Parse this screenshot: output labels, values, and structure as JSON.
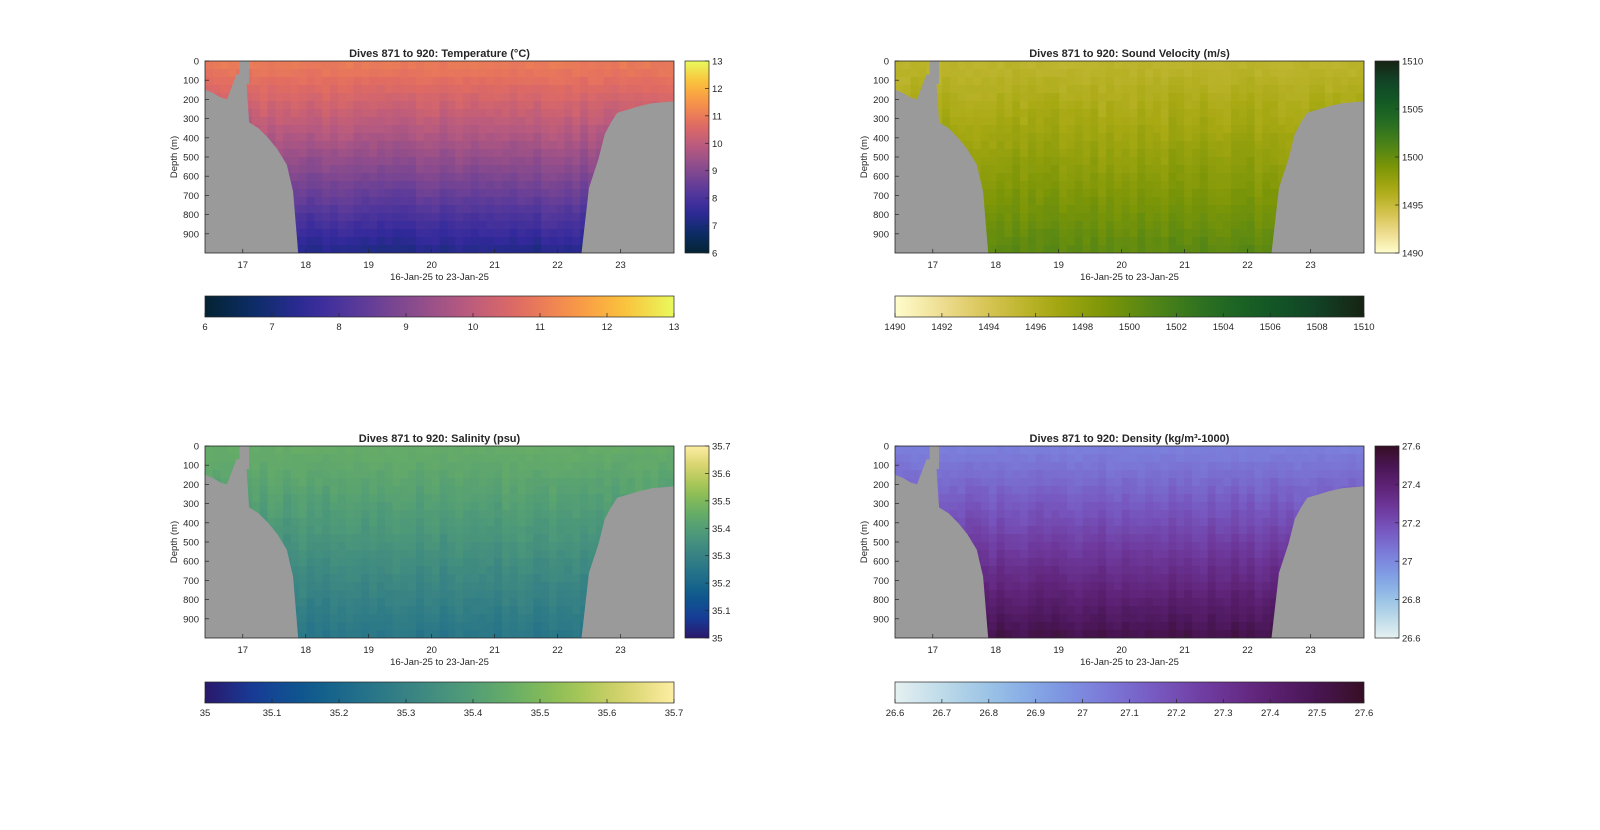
{
  "figure": {
    "background": "#ffffff",
    "land_color": "#9a9a9a"
  },
  "chart_data": [
    {
      "type": "heatmap",
      "id": "temperature",
      "title": "Dives 871 to 920: Temperature (°C)",
      "ylabel": "Depth (m)",
      "xlabel": "16-Jan-25 to 23-Jan-25",
      "xlim": [
        16.4,
        23.85
      ],
      "ylim": [
        0,
        1000
      ],
      "y_reversed": true,
      "xticks": [
        "17",
        "18",
        "19",
        "20",
        "21",
        "22",
        "23"
      ],
      "yticks": [
        "0",
        "100",
        "200",
        "300",
        "400",
        "500",
        "600",
        "700",
        "800",
        "900"
      ],
      "colormap": "thermal",
      "clim": [
        6,
        13
      ],
      "colorbar_right_ticks": [
        "13",
        "12",
        "11",
        "10",
        "9",
        "8",
        "7",
        "6"
      ],
      "colorbar_bottom_ticks": [
        "6",
        "7",
        "8",
        "9",
        "10",
        "11",
        "12",
        "13"
      ],
      "surface_value": 11.0,
      "deep_value": 7.2,
      "land_left": [
        [
          16.4,
          150
        ],
        [
          16.52,
          165
        ],
        [
          16.65,
          190
        ],
        [
          16.75,
          200
        ],
        [
          16.9,
          70
        ],
        [
          17.05,
          70
        ],
        [
          17.1,
          320
        ],
        [
          17.25,
          350
        ],
        [
          17.4,
          400
        ],
        [
          17.55,
          460
        ],
        [
          17.7,
          540
        ],
        [
          17.8,
          680
        ],
        [
          17.88,
          1000
        ]
      ],
      "land_right": [
        [
          22.38,
          1000
        ],
        [
          22.5,
          660
        ],
        [
          22.65,
          510
        ],
        [
          22.75,
          380
        ],
        [
          22.85,
          320
        ],
        [
          22.95,
          270
        ],
        [
          23.05,
          260
        ],
        [
          23.15,
          250
        ],
        [
          23.3,
          235
        ],
        [
          23.5,
          220
        ],
        [
          23.85,
          210
        ]
      ],
      "notch": [
        16.95,
        17.1,
        0,
        120
      ]
    },
    {
      "type": "heatmap",
      "id": "sound_velocity",
      "title": "Dives 871 to 920: Sound Velocity (m/s)",
      "ylabel": "Depth (m)",
      "xlabel": "16-Jan-25 to 23-Jan-25",
      "xlim": [
        16.4,
        23.85
      ],
      "ylim": [
        0,
        1000
      ],
      "y_reversed": true,
      "xticks": [
        "17",
        "18",
        "19",
        "20",
        "21",
        "22",
        "23"
      ],
      "yticks": [
        "0",
        "100",
        "200",
        "300",
        "400",
        "500",
        "600",
        "700",
        "800",
        "900"
      ],
      "colormap": "speed",
      "clim": [
        1490,
        1510
      ],
      "colorbar_right_ticks": [
        "1510",
        "1505",
        "1500",
        "1495",
        "1490"
      ],
      "colorbar_bottom_ticks": [
        "1490",
        "1492",
        "1494",
        "1496",
        "1498",
        "1500",
        "1502",
        "1504",
        "1506",
        "1508",
        "1510"
      ],
      "surface_value": 1495.5,
      "deep_value": 1500.5,
      "land_left": [
        [
          16.4,
          150
        ],
        [
          16.52,
          165
        ],
        [
          16.65,
          190
        ],
        [
          16.75,
          200
        ],
        [
          16.9,
          70
        ],
        [
          17.05,
          70
        ],
        [
          17.1,
          320
        ],
        [
          17.25,
          350
        ],
        [
          17.4,
          400
        ],
        [
          17.55,
          460
        ],
        [
          17.7,
          540
        ],
        [
          17.8,
          680
        ],
        [
          17.88,
          1000
        ]
      ],
      "land_right": [
        [
          22.38,
          1000
        ],
        [
          22.5,
          660
        ],
        [
          22.65,
          510
        ],
        [
          22.75,
          380
        ],
        [
          22.85,
          320
        ],
        [
          22.95,
          270
        ],
        [
          23.05,
          260
        ],
        [
          23.15,
          250
        ],
        [
          23.3,
          235
        ],
        [
          23.5,
          220
        ],
        [
          23.85,
          210
        ]
      ],
      "notch": [
        16.95,
        17.1,
        0,
        120
      ]
    },
    {
      "type": "heatmap",
      "id": "salinity",
      "title": "Dives 871 to 920: Salinity (psu)",
      "ylabel": "Depth (m)",
      "xlabel": "16-Jan-25 to 23-Jan-25",
      "xlim": [
        16.4,
        23.85
      ],
      "ylim": [
        0,
        1000
      ],
      "y_reversed": true,
      "xticks": [
        "17",
        "18",
        "19",
        "20",
        "21",
        "22",
        "23"
      ],
      "yticks": [
        "0",
        "100",
        "200",
        "300",
        "400",
        "500",
        "600",
        "700",
        "800",
        "900"
      ],
      "colormap": "haline",
      "clim": [
        35,
        35.7
      ],
      "colorbar_right_ticks": [
        "35.7",
        "35.6",
        "35.5",
        "35.4",
        "35.3",
        "35.2",
        "35.1",
        "35"
      ],
      "colorbar_bottom_ticks": [
        "35",
        "35.1",
        "35.2",
        "35.3",
        "35.4",
        "35.5",
        "35.6",
        "35.7"
      ],
      "surface_value": 35.45,
      "deep_value": 35.25,
      "land_left": [
        [
          16.4,
          150
        ],
        [
          16.52,
          165
        ],
        [
          16.65,
          190
        ],
        [
          16.75,
          200
        ],
        [
          16.9,
          70
        ],
        [
          17.05,
          70
        ],
        [
          17.1,
          320
        ],
        [
          17.25,
          350
        ],
        [
          17.4,
          400
        ],
        [
          17.55,
          460
        ],
        [
          17.7,
          540
        ],
        [
          17.8,
          680
        ],
        [
          17.88,
          1000
        ]
      ],
      "land_right": [
        [
          22.38,
          1000
        ],
        [
          22.5,
          660
        ],
        [
          22.65,
          510
        ],
        [
          22.75,
          380
        ],
        [
          22.85,
          320
        ],
        [
          22.95,
          270
        ],
        [
          23.05,
          260
        ],
        [
          23.15,
          250
        ],
        [
          23.3,
          235
        ],
        [
          23.5,
          220
        ],
        [
          23.85,
          210
        ]
      ],
      "notch": [
        16.95,
        17.1,
        0,
        120
      ]
    },
    {
      "type": "heatmap",
      "id": "density",
      "title": "Dives 871 to 920: Density (kg/m³-1000)",
      "ylabel": "Depth (m)",
      "xlabel": "16-Jan-25 to 23-Jan-25",
      "xlim": [
        16.4,
        23.85
      ],
      "ylim": [
        0,
        1000
      ],
      "y_reversed": true,
      "xticks": [
        "17",
        "18",
        "19",
        "20",
        "21",
        "22",
        "23"
      ],
      "yticks": [
        "0",
        "100",
        "200",
        "300",
        "400",
        "500",
        "600",
        "700",
        "800",
        "900"
      ],
      "colormap": "dense",
      "clim": [
        26.6,
        27.6
      ],
      "colorbar_right_ticks": [
        "27.6",
        "27.4",
        "27.2",
        "27",
        "26.8",
        "26.6"
      ],
      "colorbar_bottom_ticks": [
        "26.6",
        "26.7",
        "26.8",
        "26.9",
        "27",
        "27.1",
        "27.2",
        "27.3",
        "27.4",
        "27.5",
        "27.6"
      ],
      "surface_value": 27.03,
      "deep_value": 27.52,
      "land_left": [
        [
          16.4,
          150
        ],
        [
          16.52,
          165
        ],
        [
          16.65,
          190
        ],
        [
          16.75,
          200
        ],
        [
          16.9,
          70
        ],
        [
          17.05,
          70
        ],
        [
          17.1,
          320
        ],
        [
          17.25,
          350
        ],
        [
          17.4,
          400
        ],
        [
          17.55,
          460
        ],
        [
          17.7,
          540
        ],
        [
          17.8,
          680
        ],
        [
          17.88,
          1000
        ]
      ],
      "land_right": [
        [
          22.38,
          1000
        ],
        [
          22.5,
          660
        ],
        [
          22.65,
          510
        ],
        [
          22.75,
          380
        ],
        [
          22.85,
          320
        ],
        [
          22.95,
          270
        ],
        [
          23.05,
          260
        ],
        [
          23.15,
          250
        ],
        [
          23.3,
          235
        ],
        [
          23.5,
          220
        ],
        [
          23.85,
          210
        ]
      ],
      "notch": [
        16.95,
        17.1,
        0,
        120
      ]
    }
  ]
}
